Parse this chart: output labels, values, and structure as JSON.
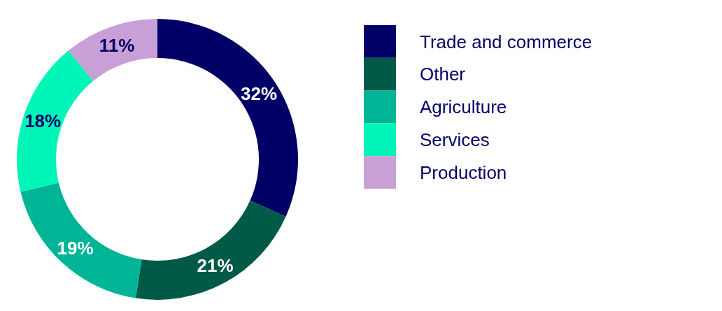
{
  "chart_data": {
    "type": "donut",
    "categories": [
      "Trade and commerce",
      "Other",
      "Agriculture",
      "Services",
      "Production"
    ],
    "values": [
      32,
      21,
      19,
      18,
      11
    ],
    "colors": [
      "#010066",
      "#005a46",
      "#00b496",
      "#00f5b9",
      "#c8a0d7"
    ],
    "value_labels": [
      "32%",
      "21%",
      "19%",
      "18%",
      "11%"
    ],
    "legend": "right"
  }
}
